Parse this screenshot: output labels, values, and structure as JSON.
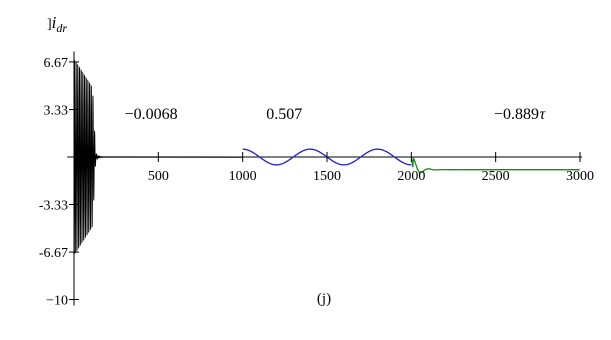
{
  "chart_data": {
    "type": "line",
    "caption": "(j)",
    "ylabel": {
      "main": "i",
      "sub": "dr",
      "prefix": "]"
    },
    "xlabel": "τ",
    "xlim": [
      -40,
      3000
    ],
    "ylim": [
      -10,
      7.2
    ],
    "x_ticks": [
      {
        "value": 500,
        "label": "500"
      },
      {
        "value": 1000,
        "label": "1000"
      },
      {
        "value": 1500,
        "label": "1500"
      },
      {
        "value": 2000,
        "label": "2000"
      },
      {
        "value": 2500,
        "label": "2500"
      },
      {
        "value": 3000,
        "label": "3000"
      }
    ],
    "y_ticks": [
      {
        "value": 6.67,
        "label": "6.67"
      },
      {
        "value": 3.33,
        "label": "3.33"
      },
      {
        "value": -3.33,
        "label": "-3.33"
      },
      {
        "value": -6.67,
        "label": "-6.67"
      },
      {
        "value": -10,
        "label": "−10"
      }
    ],
    "annotations": [
      {
        "text": "−0.0068",
        "x": 300,
        "y": 3.0
      },
      {
        "text": "0.507",
        "x": 1140,
        "y": 3.0
      },
      {
        "text": "−0.889",
        "x": 2490,
        "y": 3.0
      },
      {
        "text": "τ",
        "x": 2760,
        "y": 3.0
      }
    ],
    "series": [
      {
        "color": "#000000",
        "segment": "transient",
        "x_range": [
          0,
          200
        ],
        "oscillation": {
          "amplitude_start": 7.2,
          "decay_end_x": 130,
          "period": 10
        },
        "final_value": -0.0068
      },
      {
        "color": "#000000",
        "segment": "steady-1",
        "x": [
          130,
          1000
        ],
        "y": [
          0.0,
          -0.0068
        ]
      },
      {
        "color": "#2020d0",
        "segment": "oscillation",
        "x_range": [
          1000,
          2000
        ],
        "oscillation": {
          "offset": 0.0,
          "amplitude": 0.55,
          "period": 400
        },
        "mean_value": 0.507
      },
      {
        "color": "#1a8a1a",
        "segment": "step-response",
        "x_range": [
          2000,
          3000
        ],
        "final_value": -0.889,
        "overshoot": 0.55
      }
    ]
  }
}
